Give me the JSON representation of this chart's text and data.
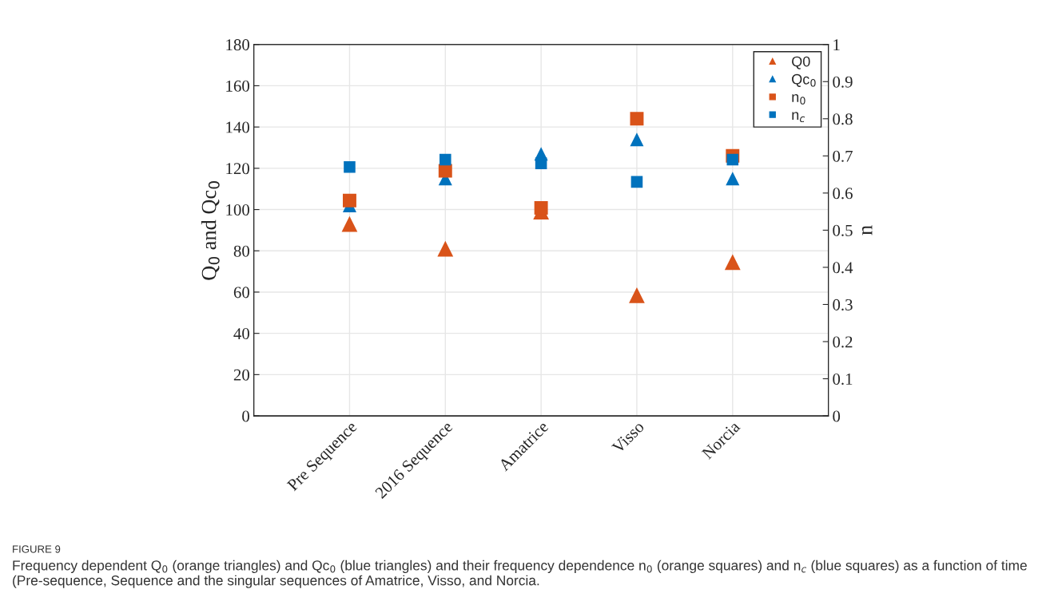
{
  "chart_data": {
    "type": "scatter",
    "ylabel": "Q$_{0}$ and Qc$_{0}$",
    "y2label": "n",
    "categories": [
      "Pre Sequence",
      "2016 Sequence",
      "Amatrice",
      "Visso",
      "Norcia"
    ],
    "series": [
      {
        "name": "Q0",
        "color": "#d95319",
        "marker": "triangle",
        "values": [
          93,
          81,
          99,
          58.5,
          74.5
        ]
      },
      {
        "name": "Qc$_{0}$",
        "color": "#0072bd",
        "marker": "triangle",
        "values": [
          102,
          115,
          127,
          134,
          115
        ]
      },
      {
        "name": "n$_{0}$",
        "color": "#d95319",
        "marker": "square",
        "axis": "y2",
        "values": [
          0.58,
          0.66,
          0.56,
          0.8,
          0.7
        ]
      },
      {
        "name": "n$_{c}$",
        "color": "#0072bd",
        "marker": "square",
        "axis": "y2",
        "values": [
          0.67,
          0.69,
          0.68,
          0.63,
          0.69
        ]
      }
    ],
    "ylim": [
      0,
      180
    ],
    "yticks": [
      0,
      20,
      40,
      60,
      80,
      100,
      120,
      140,
      160,
      180
    ],
    "y2lim": [
      0,
      1
    ],
    "y2ticks": [
      0,
      0.1,
      0.2,
      0.3,
      0.4,
      0.5,
      0.6,
      0.7,
      0.8,
      0.9,
      1
    ],
    "grid": true,
    "legend": "top right",
    "annotations": [
      "FIGURE 9",
      "Frequency dependent Q$_{0}$ (orange triangles) and Qc$_{0}$ (blue triangles) and their frequency dependence n$_{0}$ (orange squares) and n$_{c}$ (blue squares) as a function of time (Pre-sequence, Sequence and the singular sequences of Amatrice, Visso, and Norcia."
    ]
  }
}
